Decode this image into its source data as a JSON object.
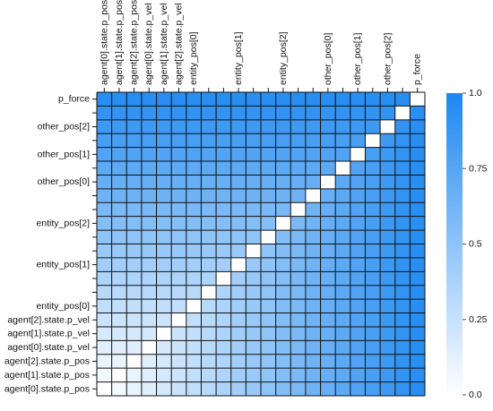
{
  "chart_data": {
    "type": "heatmap",
    "labels": [
      "agent[0].state.p_pos",
      "agent[1].state.p_pos",
      "agent[2].state.p_pos",
      "agent[0].state.p_vel",
      "agent[1].state.p_vel",
      "agent[2].state.p_vel",
      "entity_pos[0]",
      "",
      "",
      "entity_pos[1]",
      "",
      "",
      "entity_pos[2]",
      "",
      "",
      "other_pos[0]",
      "",
      "other_pos[1]",
      "",
      "other_pos[2]",
      "",
      "p_force"
    ],
    "x_tick_labels": [
      "agent[0].state.p_pos",
      "agent[1].state.p_pos",
      "agent[2].state.p_pos",
      "agent[0].state.p_vel",
      "agent[1].state.p_vel",
      "agent[2].state.p_vel",
      "entity_pos[0]",
      "",
      "",
      "entity_pos[1]",
      "",
      "",
      "entity_pos[2]",
      "",
      "",
      "other_pos[0]",
      "",
      "other_pos[1]",
      "",
      "other_pos[2]",
      "",
      "p_force"
    ],
    "y_tick_labels": [
      "agent[0].state.p_pos",
      "agent[1].state.p_pos",
      "agent[2].state.p_pos",
      "agent[0].state.p_vel",
      "agent[1].state.p_vel",
      "agent[2].state.p_vel",
      "entity_pos[0]",
      "",
      "",
      "entity_pos[1]",
      "",
      "",
      "entity_pos[2]",
      "",
      "",
      "other_pos[0]",
      "",
      "other_pos[1]",
      "",
      "other_pos[2]",
      "",
      "p_force"
    ],
    "x_order": "left-to-right",
    "y_order": "bottom-to-top",
    "value_rule": "symmetric matrix; diagonal cells are 0 (white); off-diagonal value grows with the larger index of the pair, from about 0.05 near index 0-1 to about 0.95 near p_force",
    "colorbar": {
      "min": 0.0,
      "max": 1.0,
      "ticks": [
        "1.0",
        "0.75",
        "0.5",
        "0.25",
        "0.0"
      ]
    },
    "colors": {
      "low": "#ffffff",
      "high": "#1e88f0",
      "grid": "#111111"
    }
  }
}
